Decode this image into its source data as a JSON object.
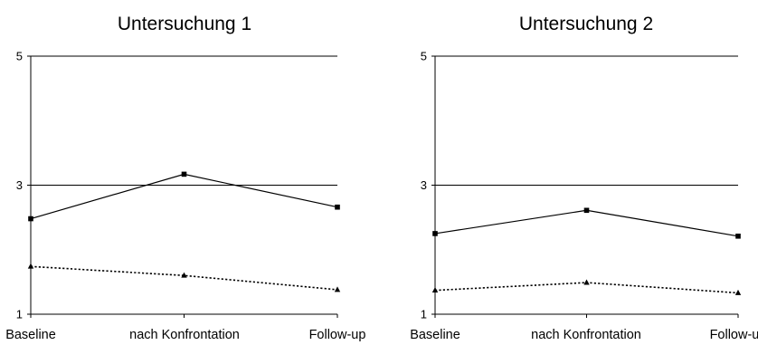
{
  "chart_data": [
    {
      "type": "line",
      "title": "Untersuchung 1",
      "categories": [
        "Baseline",
        "nach Konfrontation",
        "Follow-up"
      ],
      "ylim": [
        1,
        5
      ],
      "yticks": [
        "1",
        "3",
        "5"
      ],
      "grid": "horizontal at 3 and 5",
      "series": [
        {
          "values": [
            2.48,
            3.17,
            2.66
          ],
          "style": "solid",
          "marker": "square"
        },
        {
          "values": [
            1.74,
            1.6,
            1.38
          ],
          "style": "dotted",
          "marker": "triangle"
        }
      ]
    },
    {
      "type": "line",
      "title": "Untersuchung 2",
      "categories": [
        "Baseline",
        "nach Konfrontation",
        "Follow-up"
      ],
      "ylim": [
        1,
        5
      ],
      "yticks": [
        "1",
        "3",
        "5"
      ],
      "grid": "horizontal at 3 and 5",
      "series": [
        {
          "values": [
            2.25,
            2.61,
            2.21
          ],
          "style": "solid",
          "marker": "square"
        },
        {
          "values": [
            1.37,
            1.49,
            1.33
          ],
          "style": "dotted",
          "marker": "triangle"
        }
      ]
    }
  ]
}
